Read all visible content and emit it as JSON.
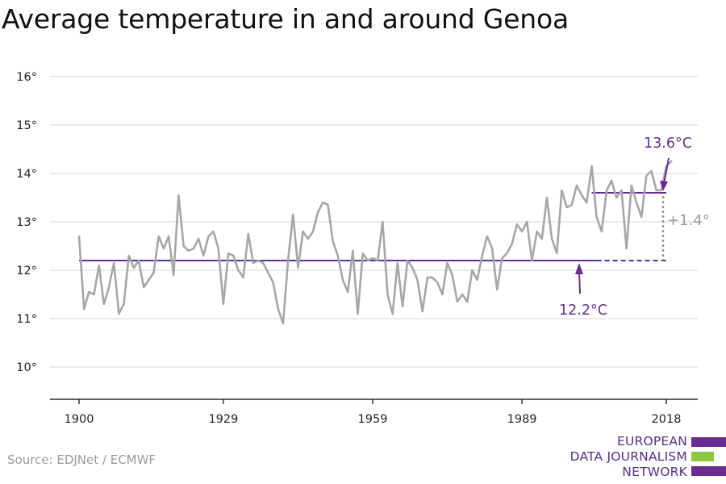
{
  "title": "Average temperature in and around Genoa",
  "source": "Source: EDJNet / ECMWF",
  "logo": {
    "lines": [
      "EUROPEAN",
      "DATA JOURNALISM",
      "NETWORK"
    ],
    "colors": [
      "#6a2c91",
      "#8dc63f",
      "#6a2c91"
    ]
  },
  "colors": {
    "line": "#a6a6a6",
    "average": "#6a2c91",
    "gridline": "#dedede",
    "axis": "#000000",
    "difference": "#999999"
  },
  "chart_data": {
    "type": "line",
    "x_ticks": [
      "1900",
      "1929",
      "1959",
      "1989",
      "2018"
    ],
    "y_ticks": [
      "10°",
      "11°",
      "12°",
      "13°",
      "14°",
      "15°",
      "16°"
    ],
    "ylim": [
      9.4,
      16.4
    ],
    "xlim": [
      1894,
      2024
    ],
    "grid": true,
    "x": [
      1900,
      1901,
      1902,
      1903,
      1904,
      1905,
      1906,
      1907,
      1908,
      1909,
      1910,
      1911,
      1912,
      1913,
      1914,
      1915,
      1916,
      1917,
      1918,
      1919,
      1920,
      1921,
      1922,
      1923,
      1924,
      1925,
      1926,
      1927,
      1928,
      1929,
      1930,
      1931,
      1932,
      1933,
      1934,
      1935,
      1936,
      1937,
      1938,
      1939,
      1940,
      1941,
      1942,
      1943,
      1944,
      1945,
      1946,
      1947,
      1948,
      1949,
      1950,
      1951,
      1952,
      1953,
      1954,
      1955,
      1956,
      1957,
      1958,
      1959,
      1960,
      1961,
      1962,
      1963,
      1964,
      1965,
      1966,
      1967,
      1968,
      1969,
      1970,
      1971,
      1972,
      1973,
      1974,
      1975,
      1976,
      1977,
      1978,
      1979,
      1980,
      1981,
      1982,
      1983,
      1984,
      1985,
      1986,
      1987,
      1988,
      1989,
      1990,
      1991,
      1992,
      1993,
      1994,
      1995,
      1996,
      1997,
      1998,
      1999,
      2000,
      2001,
      2002,
      2003,
      2004,
      2005,
      2006,
      2007,
      2008,
      2009,
      2010,
      2011,
      2012,
      2013,
      2014,
      2015,
      2016,
      2017,
      2018,
      2019
    ],
    "series": [
      {
        "values": [
          12.7,
          11.2,
          11.55,
          11.5,
          12.1,
          11.3,
          11.65,
          12.15,
          11.1,
          11.3,
          12.3,
          12.05,
          12.2,
          11.65,
          11.8,
          11.95,
          12.7,
          12.45,
          12.7,
          11.9,
          13.55,
          12.5,
          12.4,
          12.45,
          12.65,
          12.3,
          12.7,
          12.8,
          12.45,
          11.3,
          12.35,
          12.3,
          12.0,
          11.85,
          12.75,
          12.15,
          12.2,
          12.15,
          11.95,
          11.75,
          11.2,
          10.9,
          12.2,
          13.15,
          12.05,
          12.8,
          12.65,
          12.8,
          13.2,
          13.4,
          13.35,
          12.6,
          12.3,
          11.8,
          11.55,
          12.4,
          11.1,
          12.35,
          12.2,
          12.25,
          12.2,
          13.0,
          11.5,
          11.1,
          12.15,
          11.25,
          12.2,
          12.05,
          11.8,
          11.15,
          11.85,
          11.85,
          11.75,
          11.5,
          12.15,
          11.9,
          11.35,
          11.5,
          11.35,
          12.0,
          11.8,
          12.3,
          12.7,
          12.45,
          11.6,
          12.25,
          12.35,
          12.55,
          12.95,
          12.8,
          13.0,
          12.2,
          12.8,
          12.65,
          13.5,
          12.65,
          12.35,
          13.65,
          13.3,
          13.35,
          13.75,
          13.55,
          13.4,
          14.15,
          13.1,
          12.8,
          13.65,
          13.85,
          13.5,
          13.65,
          12.45,
          13.75,
          13.4,
          13.1,
          13.95,
          14.05,
          13.65,
          13.65,
          14.15,
          14.25
        ]
      }
    ],
    "reference_lines": [
      {
        "label": "12.2°C",
        "value": 12.2,
        "x_start": 1900,
        "x_end": 2004,
        "dashed_to": 2018
      },
      {
        "label": "13.6°C",
        "value": 13.6,
        "x_start": 2003,
        "x_end": 2018
      }
    ],
    "difference_label": "+1.4°"
  }
}
